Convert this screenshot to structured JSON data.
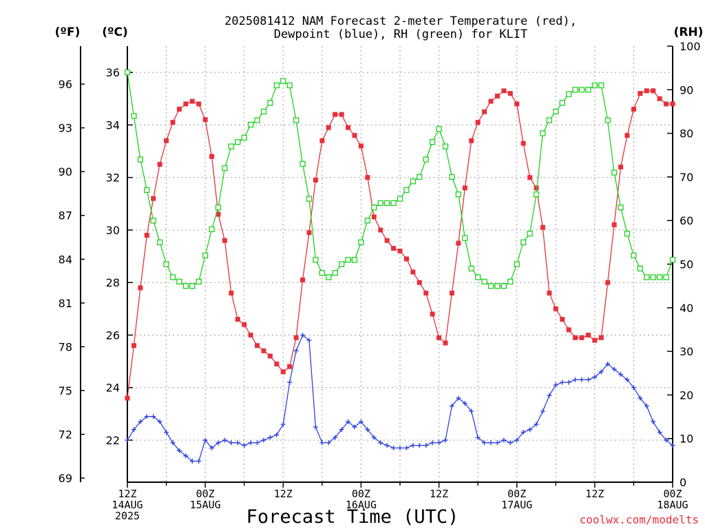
{
  "title_lines": [
    "2025081412 NAM Forecast 2-meter Temperature (red),",
    "Dewpoint (blue), RH (green) for KLIT"
  ],
  "units": {
    "fahrenheit": "(ºF)",
    "celsius": "(ºC)",
    "rh": "(RH)"
  },
  "xlabel": "Forecast Time (UTC)",
  "credit": "coolwx.com/modelts",
  "colors": {
    "temperature": "#e8303a",
    "dewpoint": "#2f43e0",
    "rh": "#1ed01e",
    "grid": "#9a9a9a"
  },
  "chart_data": {
    "type": "line",
    "x_unit": "forecast hour",
    "xlim": [
      0,
      84
    ],
    "x_ticks": [
      {
        "hour": 0,
        "lines": [
          "12Z",
          "14AUG",
          "2025"
        ]
      },
      {
        "hour": 12,
        "lines": [
          "00Z",
          "15AUG"
        ]
      },
      {
        "hour": 24,
        "lines": [
          "12Z"
        ]
      },
      {
        "hour": 36,
        "lines": [
          "00Z",
          "16AUG"
        ]
      },
      {
        "hour": 48,
        "lines": [
          "12Z"
        ]
      },
      {
        "hour": 60,
        "lines": [
          "00Z",
          "17AUG"
        ]
      },
      {
        "hour": 72,
        "lines": [
          "12Z"
        ]
      },
      {
        "hour": 84,
        "lines": [
          "00Z",
          "18AUG"
        ]
      }
    ],
    "left_axis": {
      "unit": "°C",
      "ylim": [
        20.4,
        37.0
      ],
      "ticks": [
        22,
        24,
        26,
        28,
        30,
        32,
        34,
        36
      ]
    },
    "fahrenheit_axis": {
      "ticks": [
        69,
        72,
        75,
        78,
        81,
        84,
        87,
        90,
        93,
        96
      ]
    },
    "right_axis": {
      "unit": "RH %",
      "ylim": [
        0,
        100
      ],
      "ticks": [
        0,
        10,
        20,
        30,
        40,
        50,
        60,
        70,
        80,
        90,
        100
      ]
    },
    "series": [
      {
        "name": "Temperature",
        "color": "#e8303a",
        "axis": "left",
        "marker": "filled-square",
        "x": [
          0,
          1,
          2,
          3,
          4,
          5,
          6,
          7,
          8,
          9,
          10,
          11,
          12,
          13,
          14,
          15,
          16,
          17,
          18,
          19,
          20,
          21,
          22,
          23,
          24,
          25,
          26,
          27,
          28,
          29,
          30,
          31,
          32,
          33,
          34,
          35,
          36,
          37,
          38,
          39,
          40,
          41,
          42,
          43,
          44,
          45,
          46,
          47,
          48,
          49,
          50,
          51,
          52,
          53,
          54,
          55,
          56,
          57,
          58,
          59,
          60,
          61,
          62,
          63,
          64,
          65,
          66,
          67,
          68,
          69,
          70,
          71,
          72,
          73,
          74,
          75,
          76,
          77,
          78,
          79,
          80,
          81,
          82,
          83,
          84
        ],
        "values": [
          23.6,
          25.6,
          27.8,
          29.8,
          31.2,
          32.5,
          33.4,
          34.1,
          34.6,
          34.8,
          34.9,
          34.8,
          34.2,
          32.8,
          30.6,
          29.6,
          27.6,
          26.6,
          26.4,
          26.0,
          25.6,
          25.4,
          25.2,
          24.9,
          24.6,
          24.8,
          25.9,
          28.1,
          29.9,
          31.9,
          33.4,
          33.9,
          34.4,
          34.4,
          33.9,
          33.6,
          33.2,
          32.0,
          30.5,
          30.0,
          29.6,
          29.3,
          29.2,
          28.9,
          28.4,
          28.0,
          27.6,
          26.8,
          25.9,
          25.7,
          27.6,
          29.5,
          31.6,
          33.4,
          34.1,
          34.5,
          34.9,
          35.1,
          35.3,
          35.2,
          34.8,
          33.3,
          32.0,
          31.6,
          30.1,
          27.6,
          27.0,
          26.6,
          26.2,
          25.9,
          25.9,
          26.0,
          25.8,
          25.9,
          28.0,
          30.2,
          32.4,
          33.6,
          34.6,
          35.2,
          35.3,
          35.3,
          35.0,
          34.8,
          34.8
        ]
      },
      {
        "name": "Dewpoint",
        "color": "#2f43e0",
        "axis": "left",
        "marker": "plus",
        "x": [
          0,
          1,
          2,
          3,
          4,
          5,
          6,
          7,
          8,
          9,
          10,
          11,
          12,
          13,
          14,
          15,
          16,
          17,
          18,
          19,
          20,
          21,
          22,
          23,
          24,
          25,
          26,
          27,
          28,
          29,
          30,
          31,
          32,
          33,
          34,
          35,
          36,
          37,
          38,
          39,
          40,
          41,
          42,
          43,
          44,
          45,
          46,
          47,
          48,
          49,
          50,
          51,
          52,
          53,
          54,
          55,
          56,
          57,
          58,
          59,
          60,
          61,
          62,
          63,
          64,
          65,
          66,
          67,
          68,
          69,
          70,
          71,
          72,
          73,
          74,
          75,
          76,
          77,
          78,
          79,
          80,
          81,
          82,
          83,
          84
        ],
        "values": [
          22.0,
          22.4,
          22.7,
          22.9,
          22.9,
          22.7,
          22.3,
          21.9,
          21.6,
          21.4,
          21.2,
          21.2,
          22.0,
          21.7,
          21.9,
          22.0,
          21.9,
          21.9,
          21.8,
          21.9,
          21.9,
          22.0,
          22.1,
          22.2,
          22.6,
          24.2,
          25.4,
          26.0,
          25.8,
          22.5,
          21.9,
          21.9,
          22.1,
          22.4,
          22.7,
          22.5,
          22.7,
          22.4,
          22.1,
          21.9,
          21.8,
          21.7,
          21.7,
          21.7,
          21.8,
          21.8,
          21.8,
          21.9,
          21.9,
          22.0,
          23.3,
          23.6,
          23.4,
          23.1,
          22.1,
          21.9,
          21.9,
          21.9,
          22.0,
          21.9,
          22.0,
          22.3,
          22.4,
          22.6,
          23.1,
          23.7,
          24.1,
          24.2,
          24.2,
          24.3,
          24.3,
          24.3,
          24.4,
          24.6,
          24.9,
          24.7,
          24.5,
          24.3,
          24.0,
          23.6,
          23.3,
          22.7,
          22.3,
          22.0,
          21.8
        ]
      },
      {
        "name": "RH",
        "color": "#1ed01e",
        "axis": "right",
        "marker": "open-square",
        "x": [
          0,
          1,
          2,
          3,
          4,
          5,
          6,
          7,
          8,
          9,
          10,
          11,
          12,
          13,
          14,
          15,
          16,
          17,
          18,
          19,
          20,
          21,
          22,
          23,
          24,
          25,
          26,
          27,
          28,
          29,
          30,
          31,
          32,
          33,
          34,
          35,
          36,
          37,
          38,
          39,
          40,
          41,
          42,
          43,
          44,
          45,
          46,
          47,
          48,
          49,
          50,
          51,
          52,
          53,
          54,
          55,
          56,
          57,
          58,
          59,
          60,
          61,
          62,
          63,
          64,
          65,
          66,
          67,
          68,
          69,
          70,
          71,
          72,
          73,
          74,
          75,
          76,
          77,
          78,
          79,
          80,
          81,
          82,
          83,
          84
        ],
        "values": [
          94,
          84,
          74,
          67,
          60,
          55,
          50,
          47,
          46,
          45,
          45,
          46,
          52,
          58,
          63,
          72,
          77,
          78,
          79,
          82,
          83,
          85,
          87,
          91,
          92,
          91,
          83,
          73,
          65,
          51,
          48,
          47,
          48,
          50,
          51,
          51,
          55,
          60,
          63,
          64,
          64,
          64,
          65,
          67,
          69,
          70,
          74,
          78,
          81,
          77,
          70,
          66,
          56,
          49,
          47,
          46,
          45,
          45,
          45,
          46,
          50,
          55,
          57,
          66,
          80,
          83,
          85,
          87,
          89,
          90,
          90,
          90,
          91,
          91,
          83,
          71,
          63,
          57,
          52,
          49,
          47,
          47,
          47,
          47,
          51
        ]
      }
    ]
  }
}
